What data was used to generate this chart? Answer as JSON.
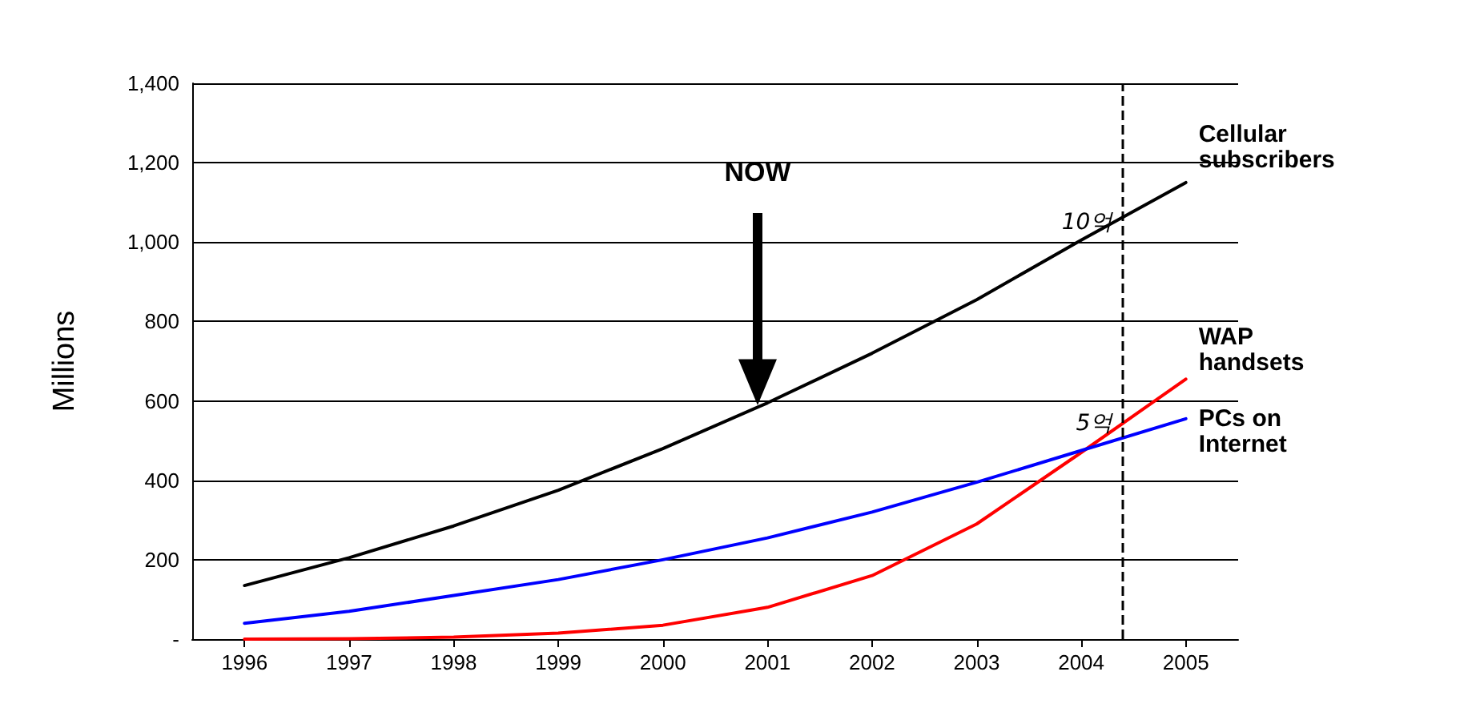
{
  "chart_data": {
    "type": "line",
    "ylabel": "Millions",
    "x": [
      1996,
      1997,
      1998,
      1999,
      2000,
      2001,
      2002,
      2003,
      2004,
      2005
    ],
    "xlim": [
      1995.5,
      2005.5
    ],
    "xticks": [
      1996,
      1997,
      1998,
      1999,
      2000,
      2001,
      2002,
      2003,
      2004,
      2005
    ],
    "ylim": [
      0,
      1400
    ],
    "yticks": [
      {
        "value": 0,
        "label": "-"
      },
      200,
      400,
      600,
      800,
      {
        "value": 1000,
        "label": "1,000"
      },
      {
        "value": 1200,
        "label": "1,200"
      },
      {
        "value": 1400,
        "label": "1,400"
      }
    ],
    "grid": "y",
    "legend": false,
    "marker": "none",
    "line_style": "solid",
    "series": [
      {
        "name": "Cellular subscribers",
        "color": "#000000",
        "values": [
          135,
          205,
          285,
          375,
          480,
          595,
          720,
          855,
          1005,
          1150
        ]
      },
      {
        "name": "WAP handsets",
        "color": "#ff0000",
        "values": [
          0,
          1,
          5,
          15,
          35,
          80,
          160,
          290,
          470,
          655
        ]
      },
      {
        "name": "PCs on Internet",
        "color": "#0000ff",
        "values": [
          40,
          70,
          110,
          150,
          200,
          255,
          320,
          395,
          475,
          555
        ]
      }
    ],
    "ref_lines": [
      {
        "axis": "x",
        "value": 2004.4,
        "line_style": "dashed",
        "color": "#000000"
      }
    ],
    "annotations": [
      "NOW",
      {
        "text": "10억",
        "x": 2004.4,
        "y": 1000
      },
      {
        "text": "5억",
        "x": 2004.4,
        "y": 550
      }
    ]
  }
}
